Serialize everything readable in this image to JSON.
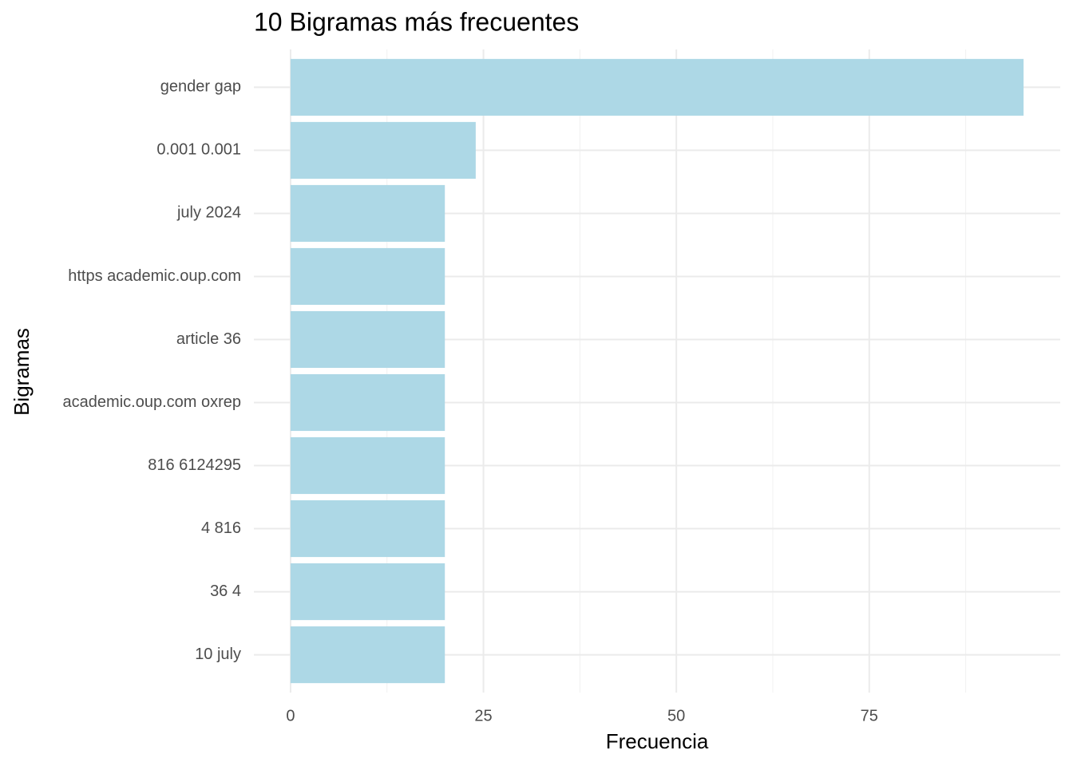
{
  "chart_data": {
    "type": "barh",
    "title": "10 Bigramas más frecuentes",
    "x_label": "Frecuencia",
    "y_label": "Bigramas",
    "categories": [
      "gender gap",
      "0.001 0.001",
      "july 2024",
      "https academic.oup.com",
      "article 36",
      "academic.oup.com oxrep",
      "816 6124295",
      "4 816",
      "36 4",
      "10 july"
    ],
    "values": [
      95,
      24,
      20,
      20,
      20,
      20,
      20,
      20,
      20,
      20
    ],
    "color": "#add8e6",
    "xlim": [
      -4.75,
      99.75
    ],
    "xticks": [
      0,
      25,
      50,
      75
    ],
    "x_minor_ticks": [
      12.5,
      37.5,
      62.5,
      87.5
    ],
    "grid": true
  }
}
